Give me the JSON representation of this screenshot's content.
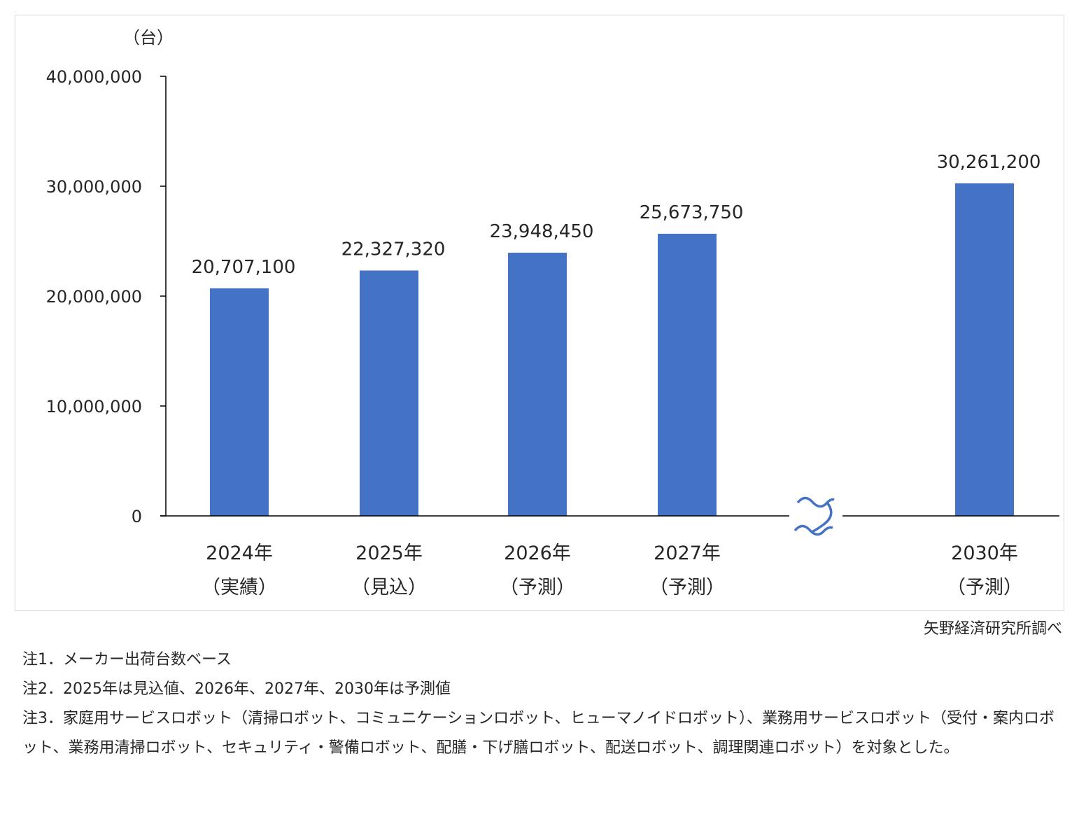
{
  "chart_data": {
    "type": "bar",
    "unit_label": "（台）",
    "categories": [
      {
        "year": "2024年",
        "status": "（実績）"
      },
      {
        "year": "2025年",
        "status": "（見込）"
      },
      {
        "year": "2026年",
        "status": "（予測）"
      },
      {
        "year": "2027年",
        "status": "（予測）"
      },
      {
        "year": "2030年",
        "status": "（予測）"
      }
    ],
    "values": [
      20707100,
      22327320,
      23948450,
      25673750,
      30261200
    ],
    "value_labels": [
      "20,707,100",
      "22,327,320",
      "23,948,450",
      "25,673,750",
      "30,261,200"
    ],
    "ylim": [
      0,
      40000000
    ],
    "yticks": [
      0,
      10000000,
      20000000,
      30000000,
      40000000
    ],
    "ytick_labels": [
      "0",
      "10,000,000",
      "20,000,000",
      "30,000,000",
      "40,000,000"
    ],
    "axis_break": true,
    "bar_color": "#4472c4",
    "axis_color": "#000000",
    "grid": false,
    "legend": "none"
  },
  "source": "矢野経済研究所調べ",
  "notes": [
    "注1．メーカー出荷台数ベース",
    "注2．2025年は見込値、2026年、2027年、2030年は予測値",
    "注3．家庭用サービスロボット（清掃ロボット、コミュニケーションロボット、ヒューマノイドロボット）、業務用サービスロボット（受付・案内ロボット、業務用清掃ロボット、セキュリティ・警備ロボット、配膳・下げ膳ロボット、配送ロボット、調理関連ロボット）を対象とした。"
  ]
}
